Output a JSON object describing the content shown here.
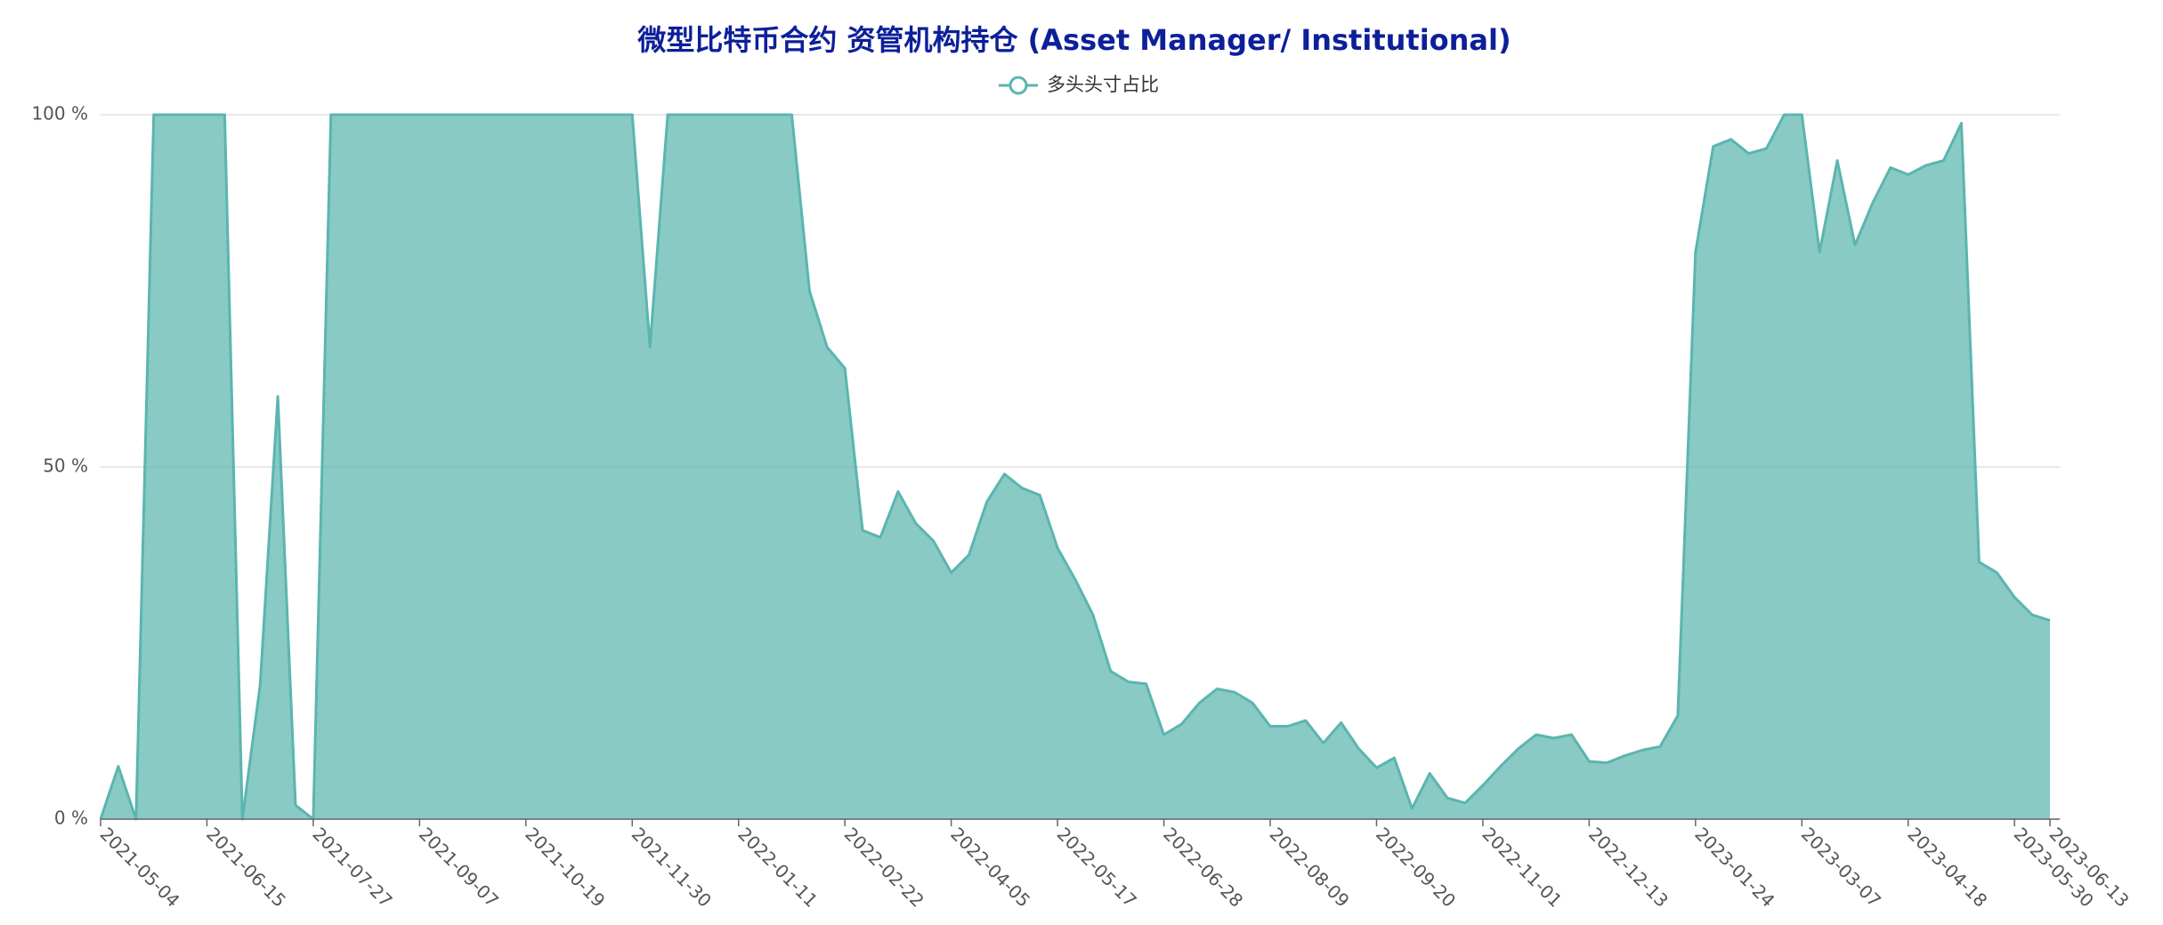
{
  "chart_data": {
    "type": "area",
    "title": "微型比特币合约 资管机构持仓 (Asset Manager/ Institutional)",
    "categories": [
      "2021-05-04",
      null,
      null,
      null,
      null,
      null,
      "2021-06-15",
      null,
      null,
      null,
      null,
      null,
      "2021-07-27",
      null,
      null,
      null,
      null,
      null,
      "2021-09-07",
      null,
      null,
      null,
      null,
      null,
      "2021-10-19",
      null,
      null,
      null,
      null,
      null,
      "2021-11-30",
      null,
      null,
      null,
      null,
      null,
      "2022-01-11",
      null,
      null,
      null,
      null,
      null,
      "2022-02-22",
      null,
      null,
      null,
      null,
      null,
      "2022-04-05",
      null,
      null,
      null,
      null,
      null,
      "2022-05-17",
      null,
      null,
      null,
      null,
      null,
      "2022-06-28",
      null,
      null,
      null,
      null,
      null,
      "2022-08-09",
      null,
      null,
      null,
      null,
      null,
      "2022-09-20",
      null,
      null,
      null,
      null,
      null,
      "2022-11-01",
      null,
      null,
      null,
      null,
      null,
      "2022-12-13",
      null,
      null,
      null,
      null,
      null,
      "2023-01-24",
      null,
      null,
      null,
      null,
      null,
      "2023-03-07",
      null,
      null,
      null,
      null,
      null,
      "2023-04-18",
      null,
      null,
      null,
      null,
      null,
      "2023-05-30",
      null,
      "2023-06-13"
    ],
    "series": [
      {
        "name": "多头头寸占比",
        "color": "#5bb5af",
        "values": [
          0,
          7.5,
          0,
          100,
          100,
          100,
          100,
          100,
          0,
          19,
          60,
          2,
          0,
          100,
          100,
          100,
          100,
          100,
          100,
          100,
          100,
          100,
          100,
          100,
          100,
          100,
          100,
          100,
          100,
          100,
          100,
          67,
          100,
          100,
          100,
          100,
          100,
          100,
          100,
          100,
          75,
          67,
          64,
          41,
          40,
          46.5,
          42,
          39.5,
          35,
          37.5,
          45,
          49,
          47,
          46,
          38.5,
          34,
          29,
          21,
          19.5,
          19.2,
          12,
          13.5,
          16.5,
          18.5,
          18,
          16.5,
          13.2,
          13.2,
          14,
          10.8,
          13.7,
          10,
          7.3,
          8.7,
          1.5,
          6.5,
          3,
          2.3,
          4.8,
          7.5,
          10,
          12,
          11.5,
          12,
          8.2,
          8,
          9,
          9.8,
          10.3,
          14.7,
          80.5,
          95.5,
          96.5,
          94.5,
          95.2,
          100,
          100,
          80.5,
          93.5,
          81.5,
          87.5,
          92.5,
          91.5,
          92.8,
          93.5,
          98.8,
          36.5,
          35,
          31.5,
          29,
          28.2
        ]
      }
    ],
    "ylim": [
      0,
      100
    ],
    "yticks": [
      {
        "value": 0,
        "label": "0 %"
      },
      {
        "value": 50,
        "label": "50 %"
      },
      {
        "value": 100,
        "label": "100 %"
      }
    ],
    "grid": true
  }
}
